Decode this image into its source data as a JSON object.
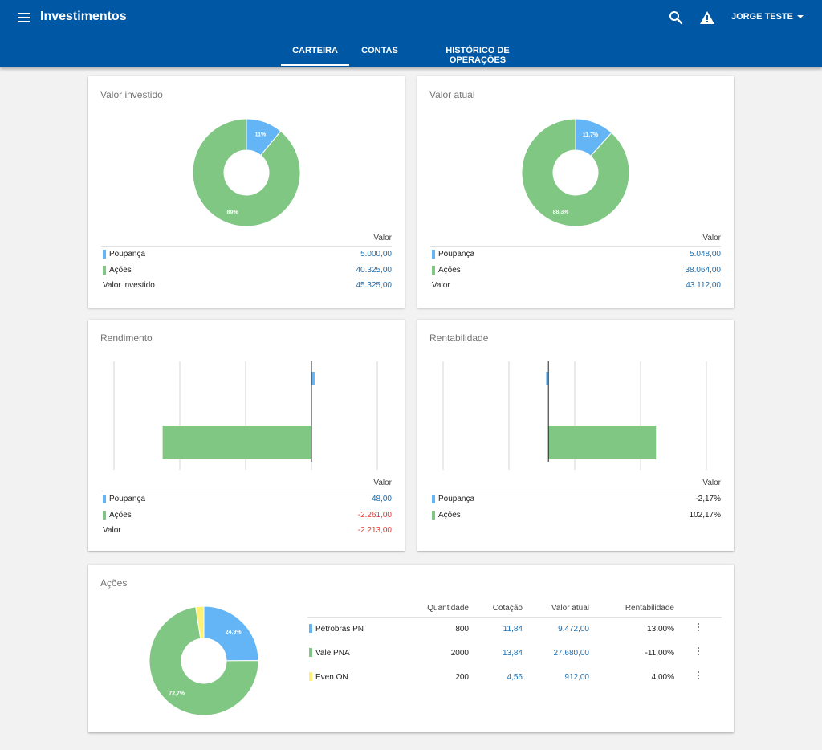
{
  "app": {
    "title": "Investimentos",
    "user": "JORGE TESTE"
  },
  "icons": {
    "menu": "menu-icon",
    "search": "search-icon",
    "alert": "warning-icon",
    "user_menu": "chevron-down-icon",
    "row_actions": "more-vert-icon"
  },
  "tabs": [
    {
      "label": "CARTEIRA",
      "active": true
    },
    {
      "label": "CONTAS",
      "active": false
    },
    {
      "label": "HISTÓRICO DE OPERAÇÕES",
      "active": false
    }
  ],
  "colors": {
    "primary": "#0057a3",
    "poupanca": "#64b5f6",
    "acoes": "#81c784",
    "even": "#fff176",
    "value_blue": "#1b6eb0",
    "value_red": "#e53935"
  },
  "valor_investido": {
    "title": "Valor investido",
    "column_header": "Valor",
    "rows": [
      {
        "label": "Poupança",
        "value": "5.000,00"
      },
      {
        "label": "Ações",
        "value": "40.325,00"
      }
    ],
    "total": {
      "label": "Valor investido",
      "value": "45.325,00"
    }
  },
  "valor_atual": {
    "title": "Valor atual",
    "column_header": "Valor",
    "rows": [
      {
        "label": "Poupança",
        "value": "5.048,00"
      },
      {
        "label": "Ações",
        "value": "38.064,00"
      }
    ],
    "total": {
      "label": "Valor",
      "value": "43.112,00"
    }
  },
  "rendimento": {
    "title": "Rendimento",
    "column_header": "Valor",
    "rows": [
      {
        "label": "Poupança",
        "value": "48,00"
      },
      {
        "label": "Ações",
        "value": "-2.261,00"
      }
    ],
    "total": {
      "label": "Valor",
      "value": "-2.213,00"
    }
  },
  "rentabilidade": {
    "title": "Rentabilidade",
    "column_header": "Valor",
    "rows": [
      {
        "label": "Poupança",
        "value": "-2,17%"
      },
      {
        "label": "Ações",
        "value": "102,17%"
      }
    ]
  },
  "acoes": {
    "title": "Ações",
    "columns": [
      "Quantidade",
      "Cotação",
      "Valor atual",
      "Rentabilidade"
    ],
    "rows": [
      {
        "name": "Petrobras PN",
        "quantidade": "800",
        "cotacao": "11,84",
        "valor_atual": "9.472,00",
        "rentabilidade": "13,00%"
      },
      {
        "name": "Vale PNA",
        "quantidade": "2000",
        "cotacao": "13,84",
        "valor_atual": "27.680,00",
        "rentabilidade": "-11,00%"
      },
      {
        "name": "Even ON",
        "quantidade": "200",
        "cotacao": "4,56",
        "valor_atual": "912,00",
        "rentabilidade": "4,00%"
      }
    ]
  },
  "chart_data": [
    {
      "type": "pie",
      "donut": true,
      "categories": [
        "Poupança",
        "Ações"
      ],
      "values": [
        11,
        89
      ],
      "labels": [
        "11%",
        "89%"
      ]
    },
    {
      "type": "pie",
      "donut": true,
      "categories": [
        "Poupança",
        "Ações"
      ],
      "values": [
        11.7,
        88.3
      ],
      "labels": [
        "11,7%",
        "88,3%"
      ]
    },
    {
      "type": "bar",
      "orientation": "horizontal",
      "categories": [
        "Poupança",
        "Ações"
      ],
      "values": [
        48,
        -2261
      ],
      "xlim": [
        -3000,
        1000
      ],
      "grid": true
    },
    {
      "type": "bar",
      "orientation": "horizontal",
      "categories": [
        "Poupança",
        "Ações"
      ],
      "values": [
        -2.17,
        102.17
      ],
      "xlim": [
        -100,
        150
      ],
      "grid": true
    },
    {
      "type": "pie",
      "donut": true,
      "categories": [
        "Petrobras PN",
        "Vale PNA",
        "Even ON"
      ],
      "values": [
        24.9,
        72.7,
        2.4
      ],
      "labels": [
        "24,9%",
        "72,7%",
        ""
      ]
    }
  ]
}
